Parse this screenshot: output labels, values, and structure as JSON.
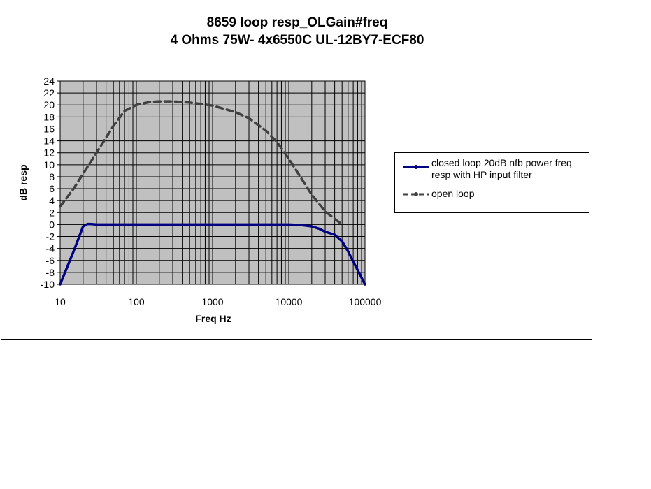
{
  "chart_data": {
    "type": "line",
    "title": "8659 loop resp_OLGain#freq",
    "subtitle": "4 Ohms 75W- 4x6550C UL-12BY7-ECF80",
    "xlabel": "Freq Hz",
    "ylabel": "dB resp",
    "xscale": "log",
    "xlim": [
      10,
      100000
    ],
    "ylim": [
      -10,
      24
    ],
    "x_ticks": [
      "10",
      "100",
      "1000",
      "10000",
      "100000"
    ],
    "y_ticks": [
      "24",
      "22",
      "20",
      "18",
      "16",
      "14",
      "12",
      "10",
      "8",
      "6",
      "4",
      "2",
      "0",
      "-2",
      "-4",
      "-6",
      "-8",
      "-10"
    ],
    "grid": true,
    "plot_background": "#c0c0c0",
    "legend_position": "right",
    "series": [
      {
        "name": "closed loop 20dB nfb power freq resp with HP input filter",
        "color": "#000080",
        "style": "solid",
        "x": [
          10,
          15,
          20,
          23,
          25,
          30,
          50,
          100,
          1000,
          10000,
          15000,
          20000,
          25000,
          30000,
          40000,
          50000,
          60000,
          70000,
          100000
        ],
        "y": [
          -10,
          -4.5,
          -0.3,
          0.1,
          0.1,
          0,
          0,
          0,
          0,
          0,
          -0.1,
          -0.3,
          -0.7,
          -1.2,
          -1.7,
          -2.8,
          -4.5,
          -6.2,
          -10
        ]
      },
      {
        "name": "open loop",
        "color": "#404040",
        "style": "dashed",
        "x": [
          10,
          15,
          20,
          30,
          50,
          70,
          100,
          150,
          200,
          300,
          500,
          1000,
          2000,
          3000,
          5000,
          7000,
          10000,
          15000,
          20000,
          30000,
          50000
        ],
        "y": [
          3,
          6,
          8.5,
          12,
          16.5,
          19,
          20,
          20.5,
          20.6,
          20.6,
          20.4,
          19.9,
          18.8,
          17.8,
          15.7,
          13.8,
          11,
          7.5,
          5,
          2.2,
          0
        ]
      }
    ]
  }
}
